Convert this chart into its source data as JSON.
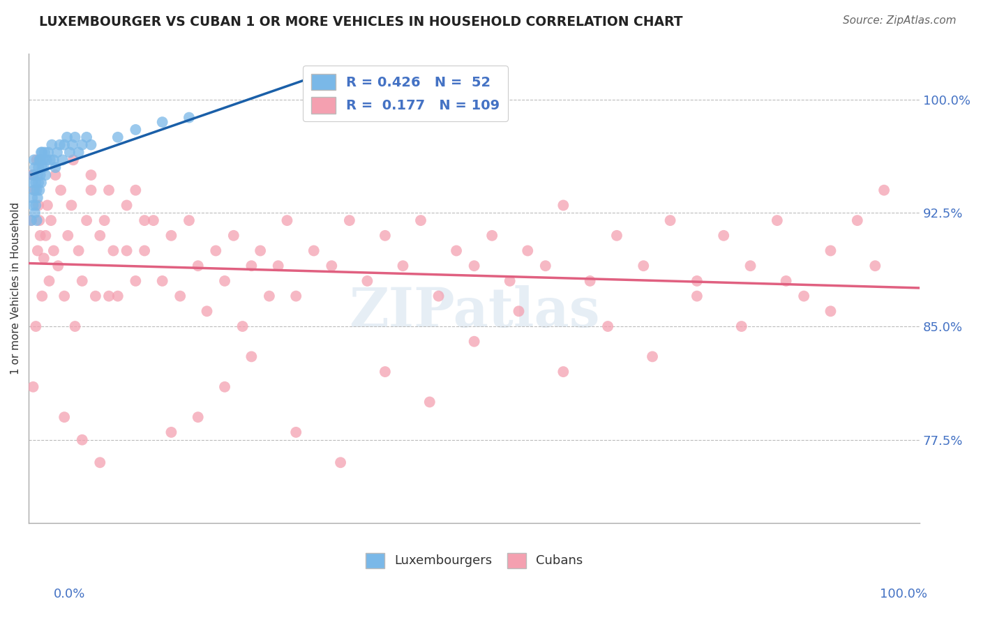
{
  "title": "LUXEMBOURGER VS CUBAN 1 OR MORE VEHICLES IN HOUSEHOLD CORRELATION CHART",
  "source": "Source: ZipAtlas.com",
  "ylabel": "1 or more Vehicles in Household",
  "ytick_labels": [
    "77.5%",
    "85.0%",
    "92.5%",
    "100.0%"
  ],
  "ytick_values": [
    0.775,
    0.85,
    0.925,
    1.0
  ],
  "xmin": 0.0,
  "xmax": 1.0,
  "ymin": 0.72,
  "ymax": 1.03,
  "lux_color": "#7ab8e8",
  "lux_line_color": "#1a5fa8",
  "cuban_color": "#f4a0b0",
  "cuban_line_color": "#e06080",
  "lux_x": [
    0.003,
    0.004,
    0.004,
    0.005,
    0.005,
    0.006,
    0.006,
    0.007,
    0.007,
    0.008,
    0.008,
    0.009,
    0.009,
    0.01,
    0.01,
    0.011,
    0.011,
    0.012,
    0.012,
    0.013,
    0.013,
    0.014,
    0.014,
    0.015,
    0.015,
    0.016,
    0.017,
    0.018,
    0.019,
    0.02,
    0.022,
    0.024,
    0.026,
    0.028,
    0.03,
    0.032,
    0.035,
    0.038,
    0.04,
    0.043,
    0.046,
    0.049,
    0.052,
    0.056,
    0.06,
    0.065,
    0.07,
    0.1,
    0.12,
    0.15,
    0.18,
    0.35
  ],
  "lux_y": [
    0.92,
    0.935,
    0.945,
    0.93,
    0.95,
    0.94,
    0.96,
    0.925,
    0.955,
    0.93,
    0.945,
    0.92,
    0.94,
    0.935,
    0.95,
    0.945,
    0.955,
    0.94,
    0.96,
    0.95,
    0.96,
    0.945,
    0.965,
    0.955,
    0.965,
    0.96,
    0.955,
    0.965,
    0.95,
    0.96,
    0.965,
    0.96,
    0.97,
    0.96,
    0.955,
    0.965,
    0.97,
    0.96,
    0.97,
    0.975,
    0.965,
    0.97,
    0.975,
    0.965,
    0.97,
    0.975,
    0.97,
    0.975,
    0.98,
    0.985,
    0.988,
    0.998
  ],
  "cuban_x": [
    0.003,
    0.004,
    0.005,
    0.006,
    0.007,
    0.008,
    0.009,
    0.01,
    0.011,
    0.012,
    0.013,
    0.015,
    0.017,
    0.019,
    0.021,
    0.023,
    0.025,
    0.028,
    0.03,
    0.033,
    0.036,
    0.04,
    0.044,
    0.048,
    0.052,
    0.056,
    0.06,
    0.065,
    0.07,
    0.075,
    0.08,
    0.085,
    0.09,
    0.095,
    0.1,
    0.11,
    0.12,
    0.13,
    0.14,
    0.15,
    0.16,
    0.17,
    0.18,
    0.19,
    0.2,
    0.21,
    0.22,
    0.23,
    0.24,
    0.25,
    0.26,
    0.27,
    0.28,
    0.29,
    0.3,
    0.32,
    0.34,
    0.36,
    0.38,
    0.4,
    0.42,
    0.44,
    0.46,
    0.48,
    0.5,
    0.52,
    0.54,
    0.56,
    0.58,
    0.6,
    0.63,
    0.66,
    0.69,
    0.72,
    0.75,
    0.78,
    0.81,
    0.84,
    0.87,
    0.9,
    0.93,
    0.96,
    0.05,
    0.07,
    0.09,
    0.11,
    0.13,
    0.16,
    0.19,
    0.22,
    0.25,
    0.3,
    0.35,
    0.4,
    0.45,
    0.5,
    0.55,
    0.6,
    0.65,
    0.7,
    0.75,
    0.8,
    0.85,
    0.9,
    0.95,
    0.04,
    0.06,
    0.08,
    0.12
  ],
  "cuban_y": [
    0.92,
    0.95,
    0.81,
    0.95,
    0.94,
    0.85,
    0.96,
    0.9,
    0.93,
    0.92,
    0.91,
    0.87,
    0.895,
    0.91,
    0.93,
    0.88,
    0.92,
    0.9,
    0.95,
    0.89,
    0.94,
    0.87,
    0.91,
    0.93,
    0.85,
    0.9,
    0.88,
    0.92,
    0.94,
    0.87,
    0.91,
    0.92,
    0.87,
    0.9,
    0.87,
    0.9,
    0.88,
    0.9,
    0.92,
    0.88,
    0.91,
    0.87,
    0.92,
    0.89,
    0.86,
    0.9,
    0.88,
    0.91,
    0.85,
    0.89,
    0.9,
    0.87,
    0.89,
    0.92,
    0.87,
    0.9,
    0.89,
    0.92,
    0.88,
    0.91,
    0.89,
    0.92,
    0.87,
    0.9,
    0.89,
    0.91,
    0.88,
    0.9,
    0.89,
    0.93,
    0.88,
    0.91,
    0.89,
    0.92,
    0.88,
    0.91,
    0.89,
    0.92,
    0.87,
    0.9,
    0.92,
    0.94,
    0.96,
    0.95,
    0.94,
    0.93,
    0.92,
    0.78,
    0.79,
    0.81,
    0.83,
    0.78,
    0.76,
    0.82,
    0.8,
    0.84,
    0.86,
    0.82,
    0.85,
    0.83,
    0.87,
    0.85,
    0.88,
    0.86,
    0.89,
    0.79,
    0.775,
    0.76,
    0.94
  ]
}
